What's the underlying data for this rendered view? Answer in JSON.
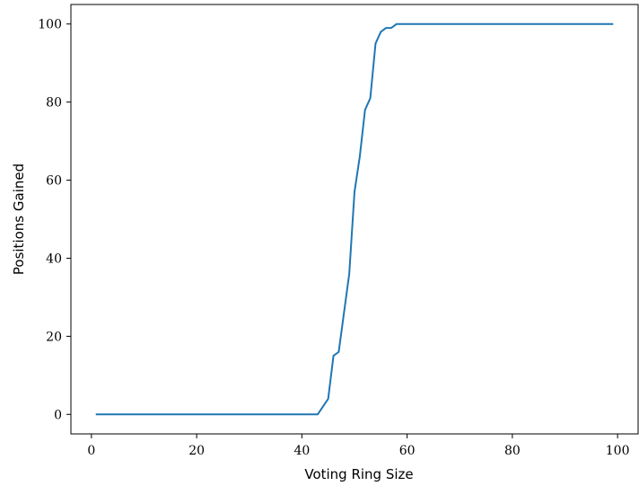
{
  "chart_data": {
    "type": "line",
    "xlabel": "Voting Ring Size",
    "ylabel": "Positions Gained",
    "xlim": [
      -3.9,
      103.9
    ],
    "ylim": [
      -5,
      105
    ],
    "xticks": [
      0,
      20,
      40,
      60,
      80,
      100
    ],
    "yticks": [
      0,
      20,
      40,
      60,
      80,
      100
    ],
    "xtick_labels": [
      "0",
      "20",
      "40",
      "60",
      "80",
      "100"
    ],
    "ytick_labels": [
      "0",
      "20",
      "40",
      "60",
      "80",
      "100"
    ],
    "grid": false,
    "series": [
      {
        "color": "#1f77b4",
        "x": [
          1,
          43,
          45,
          46,
          47,
          48,
          49,
          50,
          51,
          52,
          53,
          54,
          55,
          56,
          57,
          58,
          99
        ],
        "y": [
          0,
          0,
          4,
          15,
          16,
          26,
          36,
          57,
          66,
          78,
          81,
          95,
          98,
          99,
          99,
          100,
          100
        ]
      }
    ]
  }
}
